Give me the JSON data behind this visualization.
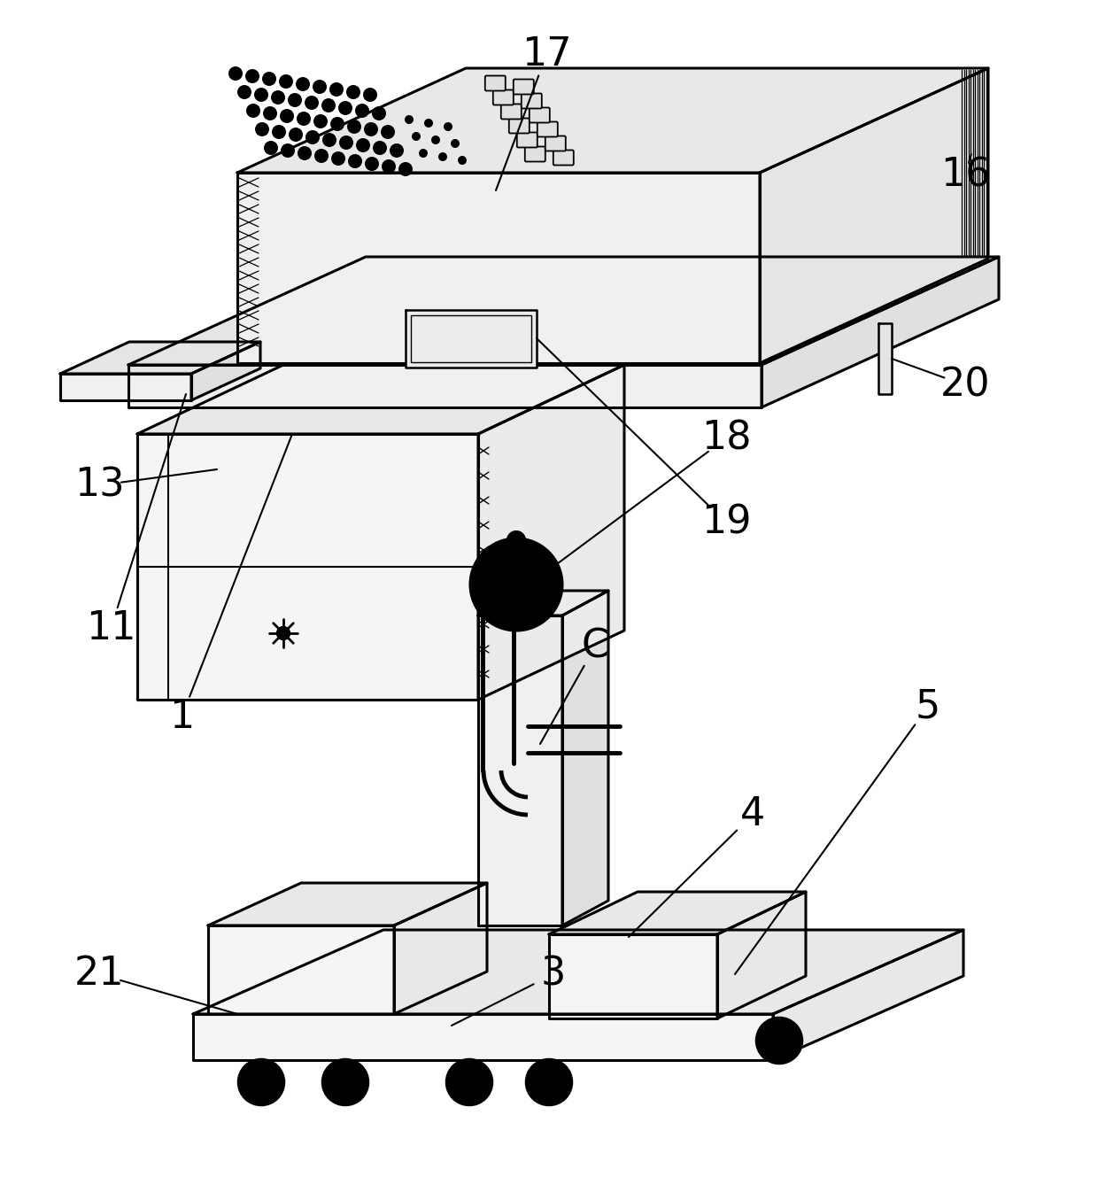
{
  "background_color": "#ffffff",
  "line_color": "#000000",
  "lw": 2.2,
  "label_fontsize": 32,
  "figsize": [
    12.4,
    13.55
  ],
  "dpi": 100
}
